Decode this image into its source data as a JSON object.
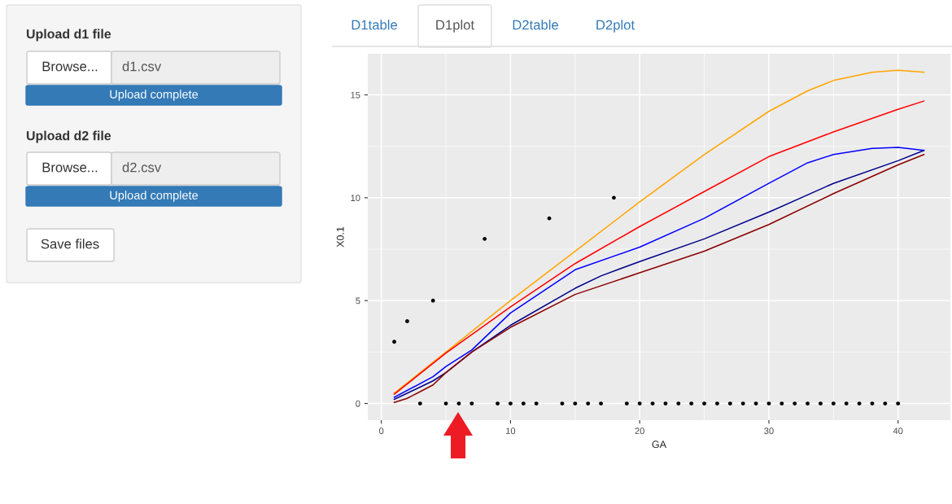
{
  "chart_data": {
    "type": "line",
    "xlabel": "GA",
    "ylabel": "X0.1",
    "xlim": [
      -1.05,
      44.05
    ],
    "ylim": [
      -0.81,
      17.0
    ],
    "xticks": [
      0,
      10,
      20,
      30,
      40
    ],
    "yticks": [
      0,
      5,
      10,
      15
    ],
    "grid": true,
    "series": [
      {
        "type": "scatter",
        "color": "#000000",
        "x": [
          1,
          2,
          3,
          4,
          5,
          6,
          7,
          8,
          9,
          10,
          11,
          12,
          13,
          14,
          15,
          16,
          17,
          18,
          19,
          20,
          21,
          22,
          23,
          24,
          25,
          26,
          27,
          28,
          29,
          30,
          31,
          32,
          33,
          34,
          35,
          36,
          37,
          38,
          39,
          40
        ],
        "values": [
          3,
          4,
          0,
          5,
          0,
          0,
          0,
          8,
          0,
          0,
          0,
          0,
          9,
          0,
          0,
          0,
          0,
          10,
          0,
          0,
          0,
          0,
          0,
          0,
          0,
          0,
          0,
          0,
          0,
          0,
          0,
          0,
          0,
          0,
          0,
          0,
          0,
          0,
          0,
          0
        ]
      },
      {
        "color": "#ffa500",
        "x": [
          1,
          5,
          10,
          15,
          20,
          25,
          30,
          33,
          35,
          38,
          40,
          42
        ],
        "values": [
          0.5,
          2.5,
          5.0,
          7.4,
          9.8,
          12.1,
          14.2,
          15.2,
          15.7,
          16.1,
          16.2,
          16.1
        ]
      },
      {
        "color": "#ff0000",
        "x": [
          1,
          5,
          10,
          15,
          20,
          25,
          30,
          35,
          40,
          42
        ],
        "values": [
          0.45,
          2.45,
          4.7,
          6.8,
          8.6,
          10.3,
          12.0,
          13.2,
          14.3,
          14.7
        ]
      },
      {
        "color": "#0000ff",
        "x": [
          1,
          4,
          5,
          7,
          10,
          15,
          20,
          25,
          30,
          33,
          35,
          38,
          40,
          42
        ],
        "values": [
          0.3,
          1.3,
          1.8,
          2.6,
          4.4,
          6.5,
          7.6,
          9.0,
          10.7,
          11.7,
          12.1,
          12.4,
          12.45,
          12.3
        ]
      },
      {
        "color": "#00008b",
        "x": [
          1,
          4,
          5,
          7,
          10,
          15,
          17,
          20,
          25,
          30,
          35,
          40,
          42
        ],
        "values": [
          0.2,
          1.1,
          1.5,
          2.5,
          3.8,
          5.6,
          6.2,
          6.9,
          8.0,
          9.3,
          10.7,
          11.8,
          12.3
        ]
      },
      {
        "color": "#8b0000",
        "x": [
          1,
          2,
          4,
          5,
          7,
          10,
          15,
          20,
          25,
          30,
          35,
          40,
          42
        ],
        "values": [
          0.05,
          0.25,
          0.9,
          1.5,
          2.5,
          3.7,
          5.3,
          6.35,
          7.4,
          8.7,
          10.2,
          11.6,
          12.1
        ]
      }
    ],
    "annotations": [
      "Upload d1 file",
      "Browse...",
      "d1.csv",
      "Upload complete",
      "Upload d2 file",
      "Browse...",
      "d2.csv",
      "Upload complete",
      "Save files",
      "D1table",
      "D1plot",
      "D2table",
      "D2plot"
    ]
  }
}
